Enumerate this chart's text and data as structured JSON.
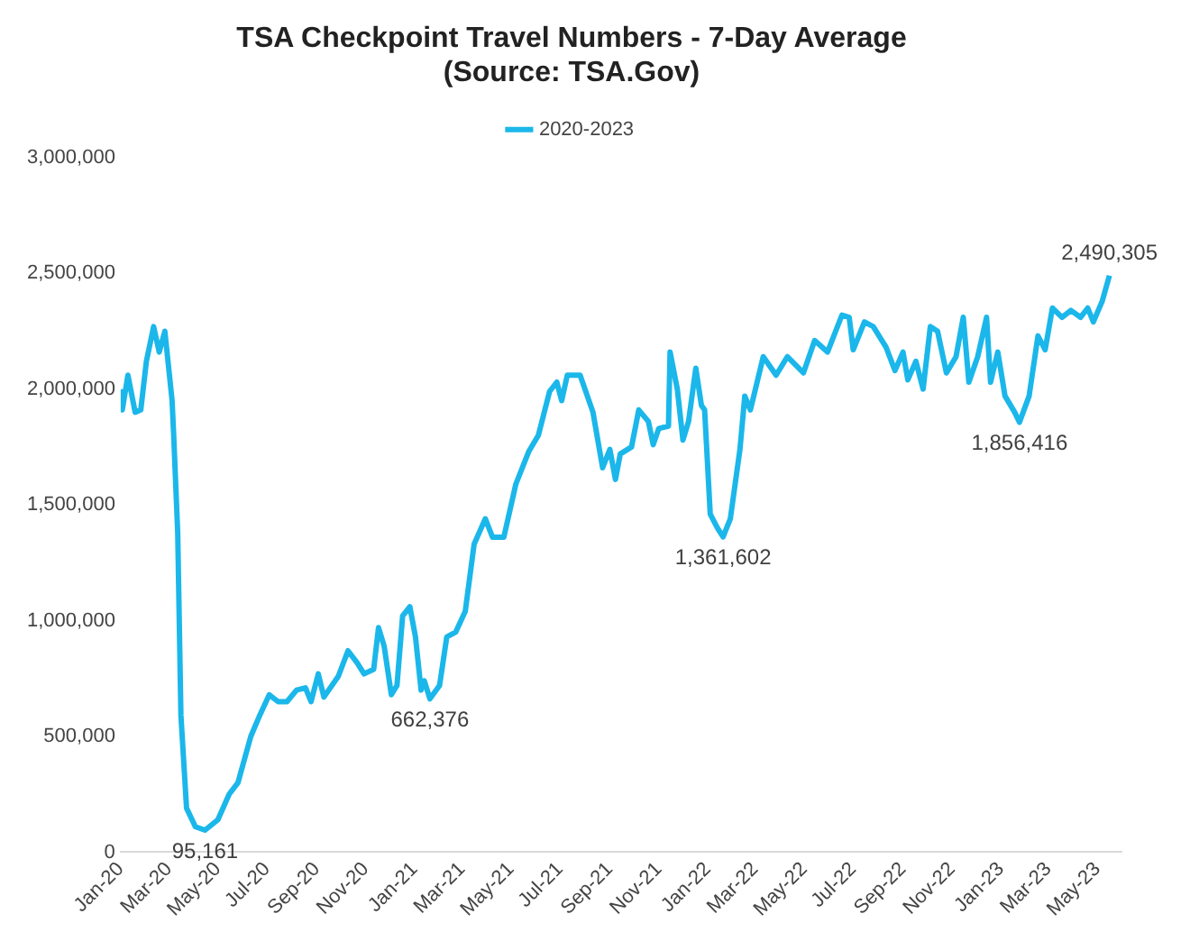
{
  "chart_data": {
    "type": "line",
    "title": "TSA Checkpoint Travel Numbers - 7-Day Average",
    "subtitle": "(Source: TSA.Gov)",
    "x": [
      "2020-01-01",
      "2020-01-03",
      "2020-01-10",
      "2020-01-19",
      "2020-01-26",
      "2020-02-02",
      "2020-02-11",
      "2020-02-18",
      "2020-02-25",
      "2020-03-05",
      "2020-03-07",
      "2020-03-12",
      "2020-03-16",
      "2020-03-23",
      "2020-04-03",
      "2020-04-15",
      "2020-05-01",
      "2020-05-15",
      "2020-05-26",
      "2020-06-11",
      "2020-06-22",
      "2020-07-04",
      "2020-07-15",
      "2020-07-26",
      "2020-08-07",
      "2020-08-18",
      "2020-08-25",
      "2020-09-03",
      "2020-09-10",
      "2020-09-28",
      "2020-10-10",
      "2020-10-21",
      "2020-10-30",
      "2020-11-11",
      "2020-11-17",
      "2020-11-24",
      "2020-12-03",
      "2020-12-10",
      "2020-12-17",
      "2020-12-26",
      "2021-01-02",
      "2021-01-09",
      "2021-01-13",
      "2021-01-20",
      "2021-02-01",
      "2021-02-10",
      "2021-02-21",
      "2021-03-05",
      "2021-03-16",
      "2021-03-30",
      "2021-04-08",
      "2021-04-22",
      "2021-05-07",
      "2021-05-23",
      "2021-06-04",
      "2021-06-18",
      "2021-06-27",
      "2021-07-03",
      "2021-07-10",
      "2021-07-26",
      "2021-08-11",
      "2021-08-23",
      "2021-09-01",
      "2021-09-08",
      "2021-09-14",
      "2021-09-28",
      "2021-10-07",
      "2021-10-19",
      "2021-10-25",
      "2021-11-01",
      "2021-11-13",
      "2021-11-15",
      "2021-11-24",
      "2021-12-01",
      "2021-12-08",
      "2021-12-17",
      "2021-12-24",
      "2021-12-28",
      "2022-01-04",
      "2022-01-13",
      "2022-01-20",
      "2022-01-29",
      "2022-02-10",
      "2022-02-16",
      "2022-02-23",
      "2022-03-11",
      "2022-03-27",
      "2022-04-10",
      "2022-04-30",
      "2022-05-14",
      "2022-05-30",
      "2022-06-17",
      "2022-06-26",
      "2022-07-01",
      "2022-07-15",
      "2022-07-26",
      "2022-08-11",
      "2022-08-22",
      "2022-09-01",
      "2022-09-07",
      "2022-09-17",
      "2022-09-26",
      "2022-10-05",
      "2022-10-14",
      "2022-10-25",
      "2022-11-06",
      "2022-11-15",
      "2022-11-22",
      "2022-12-03",
      "2022-12-14",
      "2022-12-19",
      "2022-12-28",
      "2023-01-06",
      "2023-01-18",
      "2023-01-24",
      "2023-02-05",
      "2023-02-16",
      "2023-02-25",
      "2023-03-06",
      "2023-03-18",
      "2023-03-29",
      "2023-04-10",
      "2023-04-19",
      "2023-04-26",
      "2023-05-07",
      "2023-05-16"
    ],
    "series": [
      {
        "name": "2020-2023",
        "color": "#1bb7ea",
        "values": [
          2000000,
          1910000,
          2060000,
          1900000,
          1910000,
          2120000,
          2270000,
          2160000,
          2250000,
          1950000,
          1800000,
          1380000,
          590000,
          190000,
          110000,
          95161,
          140000,
          250000,
          300000,
          500000,
          590000,
          680000,
          650000,
          650000,
          700000,
          710000,
          650000,
          770000,
          670000,
          760000,
          870000,
          820000,
          770000,
          790000,
          970000,
          890000,
          680000,
          720000,
          1020000,
          1060000,
          930000,
          700000,
          740000,
          662376,
          720000,
          930000,
          950000,
          1040000,
          1330000,
          1440000,
          1360000,
          1360000,
          1590000,
          1730000,
          1800000,
          1990000,
          2030000,
          1950000,
          2060000,
          2060000,
          1900000,
          1660000,
          1740000,
          1610000,
          1720000,
          1750000,
          1910000,
          1860000,
          1760000,
          1830000,
          1840000,
          2160000,
          2000000,
          1780000,
          1860000,
          2090000,
          1930000,
          1910000,
          1460000,
          1400000,
          1361602,
          1440000,
          1740000,
          1970000,
          1910000,
          2140000,
          2060000,
          2140000,
          2070000,
          2210000,
          2160000,
          2320000,
          2310000,
          2170000,
          2290000,
          2270000,
          2180000,
          2080000,
          2160000,
          2040000,
          2120000,
          2000000,
          2270000,
          2250000,
          2070000,
          2140000,
          2310000,
          2030000,
          2140000,
          2310000,
          2030000,
          2160000,
          1970000,
          1900000,
          1856416,
          1970000,
          2230000,
          2170000,
          2350000,
          2310000,
          2340000,
          2310000,
          2350000,
          2290000,
          2380000,
          2490305
        ]
      }
    ],
    "xlim": [
      "2020-01-01",
      "2023-05-31"
    ],
    "xticks": [
      {
        "value": "2020-01-01",
        "label": "Jan-20"
      },
      {
        "value": "2020-03-01",
        "label": "Mar-20"
      },
      {
        "value": "2020-05-01",
        "label": "May-20"
      },
      {
        "value": "2020-07-01",
        "label": "Jul-20"
      },
      {
        "value": "2020-09-01",
        "label": "Sep-20"
      },
      {
        "value": "2020-11-01",
        "label": "Nov-20"
      },
      {
        "value": "2021-01-01",
        "label": "Jan-21"
      },
      {
        "value": "2021-03-01",
        "label": "Mar-21"
      },
      {
        "value": "2021-05-01",
        "label": "May-21"
      },
      {
        "value": "2021-07-01",
        "label": "Jul-21"
      },
      {
        "value": "2021-09-01",
        "label": "Sep-21"
      },
      {
        "value": "2021-11-01",
        "label": "Nov-21"
      },
      {
        "value": "2022-01-01",
        "label": "Jan-22"
      },
      {
        "value": "2022-03-01",
        "label": "Mar-22"
      },
      {
        "value": "2022-05-01",
        "label": "May-22"
      },
      {
        "value": "2022-07-01",
        "label": "Jul-22"
      },
      {
        "value": "2022-09-01",
        "label": "Sep-22"
      },
      {
        "value": "2022-11-01",
        "label": "Nov-22"
      },
      {
        "value": "2023-01-01",
        "label": "Jan-23"
      },
      {
        "value": "2023-03-01",
        "label": "Mar-23"
      },
      {
        "value": "2023-05-01",
        "label": "May-23"
      }
    ],
    "ylim": [
      0,
      3000000
    ],
    "yticks": [
      0,
      {
        "value": 500000,
        "label": "500,000"
      },
      {
        "value": 1000000,
        "label": "1,000,000"
      },
      {
        "value": 1500000,
        "label": "1,500,000"
      },
      {
        "value": 2000000,
        "label": "2,000,000"
      },
      {
        "value": 2500000,
        "label": "2,500,000"
      },
      {
        "value": 3000000,
        "label": "3,000,000"
      }
    ],
    "annotations": [
      {
        "text": "95,161",
        "x": "2020-04-15",
        "y": 95161
      },
      {
        "text": "662,376",
        "x": "2021-01-20",
        "y": 662376
      },
      {
        "text": "1,361,602",
        "x": "2022-01-20",
        "y": 1361602
      },
      {
        "text": "1,856,416",
        "x": "2023-01-24",
        "y": 1856416
      },
      {
        "text": "2,490,305",
        "x": "2023-05-16",
        "y": 2490305
      }
    ],
    "grid": false,
    "legend": "top",
    "marker": "none",
    "line_style": "solid"
  }
}
